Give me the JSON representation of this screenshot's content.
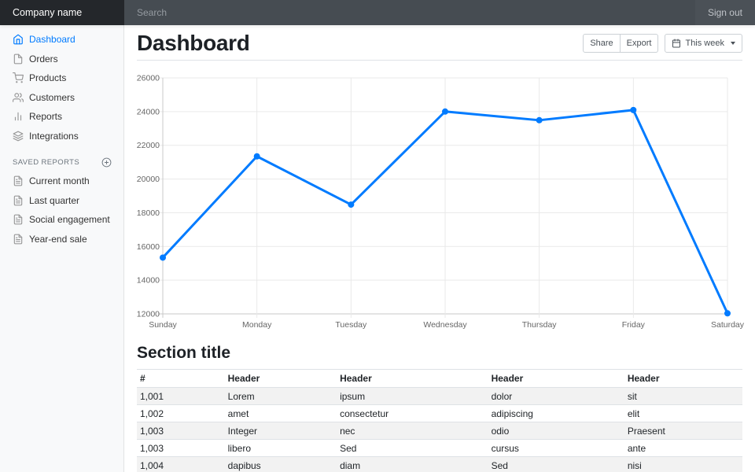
{
  "navbar": {
    "brand": "Company name",
    "search_placeholder": "Search",
    "sign_out_label": "Sign out"
  },
  "sidebar": {
    "nav_items": [
      {
        "label": "Dashboard",
        "icon": "home",
        "active": true
      },
      {
        "label": "Orders",
        "icon": "file",
        "active": false
      },
      {
        "label": "Products",
        "icon": "shopping-cart",
        "active": false
      },
      {
        "label": "Customers",
        "icon": "users",
        "active": false
      },
      {
        "label": "Reports",
        "icon": "bar-chart",
        "active": false
      },
      {
        "label": "Integrations",
        "icon": "layers",
        "active": false
      }
    ],
    "saved_reports": {
      "heading": "Saved reports",
      "add_icon": "plus-circle",
      "items": [
        {
          "label": "Current month",
          "icon": "file-text"
        },
        {
          "label": "Last quarter",
          "icon": "file-text"
        },
        {
          "label": "Social engagement",
          "icon": "file-text"
        },
        {
          "label": "Year-end sale",
          "icon": "file-text"
        }
      ]
    }
  },
  "main": {
    "page_title": "Dashboard",
    "toolbar": {
      "share_label": "Share",
      "export_label": "Export",
      "period_label": "This week",
      "period_icon": "calendar"
    },
    "section_title": "Section title"
  },
  "chart_data": {
    "type": "line",
    "categories": [
      "Sunday",
      "Monday",
      "Tuesday",
      "Wednesday",
      "Thursday",
      "Friday",
      "Saturday"
    ],
    "values": [
      15339,
      21345,
      18483,
      24003,
      23489,
      24092,
      12034
    ],
    "title": "",
    "xlabel": "",
    "ylabel": "",
    "ylim": [
      12000,
      26000
    ],
    "ytick_step": 2000,
    "grid": true,
    "legend": false,
    "line_color": "#007bff",
    "point_color": "#007bff"
  },
  "table": {
    "headers": [
      "#",
      "Header",
      "Header",
      "Header",
      "Header"
    ],
    "rows": [
      [
        "1,001",
        "Lorem",
        "ipsum",
        "dolor",
        "sit"
      ],
      [
        "1,002",
        "amet",
        "consectetur",
        "adipiscing",
        "elit"
      ],
      [
        "1,003",
        "Integer",
        "nec",
        "odio",
        "Praesent"
      ],
      [
        "1,003",
        "libero",
        "Sed",
        "cursus",
        "ante"
      ],
      [
        "1,004",
        "dapibus",
        "diam",
        "Sed",
        "nisi"
      ]
    ]
  },
  "colors": {
    "accent": "#007bff",
    "navbar_brand_bg": "#24272b",
    "navbar_search_bg": "#464c52",
    "navbar_right_bg": "#4b5157",
    "sidebar_bg": "#f8f9fa",
    "border": "#dee2e6",
    "muted": "#6c757d",
    "icon_gray": "#999999",
    "row_stripe": "#f2f2f2",
    "grid_line": "#e9e9e9",
    "axis_line": "#c9c9c9",
    "tick_text": "#666666"
  }
}
